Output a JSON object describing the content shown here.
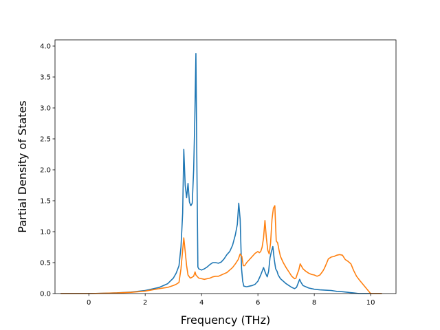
{
  "chart_data": {
    "type": "line",
    "title": "",
    "xlabel": "Frequency (THz)",
    "ylabel": "Partial Density of States",
    "xlim": [
      -1.2,
      10.9
    ],
    "ylim": [
      0,
      4.1
    ],
    "xticks": [
      0,
      2,
      4,
      6,
      8,
      10
    ],
    "yticks": [
      0.0,
      0.5,
      1.0,
      1.5,
      2.0,
      2.5,
      3.0,
      3.5,
      4.0
    ],
    "grid": false,
    "legend": "none",
    "series": [
      {
        "color": "#1f77b4",
        "x": [
          -1.0,
          0.0,
          0.5,
          1.0,
          1.5,
          2.0,
          2.5,
          2.8,
          3.0,
          3.1,
          3.2,
          3.27,
          3.33,
          3.37,
          3.42,
          3.47,
          3.52,
          3.57,
          3.62,
          3.67,
          3.72,
          3.76,
          3.8,
          3.83,
          3.87,
          3.9,
          4.0,
          4.1,
          4.2,
          4.3,
          4.4,
          4.5,
          4.6,
          4.7,
          4.8,
          4.9,
          5.0,
          5.1,
          5.2,
          5.27,
          5.32,
          5.37,
          5.42,
          5.46,
          5.5,
          5.6,
          5.7,
          5.8,
          5.9,
          6.0,
          6.1,
          6.2,
          6.27,
          6.33,
          6.38,
          6.43,
          6.48,
          6.53,
          6.58,
          6.63,
          6.68,
          6.72,
          6.8,
          6.9,
          7.0,
          7.1,
          7.2,
          7.3,
          7.37,
          7.43,
          7.48,
          7.53,
          7.6,
          7.7,
          7.8,
          7.9,
          8.0,
          8.2,
          8.4,
          8.6,
          8.8,
          9.0,
          9.2,
          9.4,
          9.6,
          9.8,
          10.0,
          10.4
        ],
        "y": [
          0.0,
          0.0,
          0.005,
          0.012,
          0.025,
          0.05,
          0.1,
          0.16,
          0.25,
          0.33,
          0.45,
          0.75,
          1.3,
          2.33,
          1.75,
          1.55,
          1.78,
          1.48,
          1.42,
          1.46,
          2.0,
          2.8,
          3.88,
          2.3,
          0.43,
          0.4,
          0.38,
          0.4,
          0.43,
          0.47,
          0.5,
          0.5,
          0.49,
          0.51,
          0.56,
          0.63,
          0.68,
          0.78,
          0.95,
          1.12,
          1.46,
          1.2,
          0.4,
          0.2,
          0.12,
          0.11,
          0.12,
          0.13,
          0.15,
          0.2,
          0.3,
          0.42,
          0.33,
          0.27,
          0.36,
          0.58,
          0.68,
          0.76,
          0.55,
          0.4,
          0.36,
          0.3,
          0.24,
          0.2,
          0.16,
          0.13,
          0.1,
          0.08,
          0.1,
          0.17,
          0.23,
          0.18,
          0.13,
          0.11,
          0.09,
          0.08,
          0.07,
          0.06,
          0.055,
          0.05,
          0.035,
          0.03,
          0.02,
          0.01,
          0.0,
          0.0,
          0.0,
          0.0
        ]
      },
      {
        "color": "#ff7f0e",
        "x": [
          -1.0,
          0.0,
          0.5,
          1.0,
          1.5,
          2.0,
          2.5,
          2.8,
          3.0,
          3.1,
          3.2,
          3.27,
          3.33,
          3.37,
          3.42,
          3.47,
          3.52,
          3.6,
          3.65,
          3.72,
          3.77,
          3.8,
          3.9,
          4.0,
          4.1,
          4.2,
          4.3,
          4.4,
          4.5,
          4.6,
          4.7,
          4.8,
          4.9,
          5.0,
          5.1,
          5.2,
          5.3,
          5.37,
          5.43,
          5.48,
          5.53,
          5.6,
          5.7,
          5.8,
          5.9,
          6.0,
          6.05,
          6.1,
          6.15,
          6.2,
          6.25,
          6.3,
          6.35,
          6.4,
          6.45,
          6.5,
          6.55,
          6.6,
          6.65,
          6.7,
          6.75,
          6.8,
          6.9,
          7.0,
          7.1,
          7.2,
          7.3,
          7.35,
          7.4,
          7.45,
          7.5,
          7.55,
          7.6,
          7.7,
          7.8,
          7.9,
          8.0,
          8.1,
          8.2,
          8.3,
          8.35,
          8.4,
          8.5,
          8.6,
          8.7,
          8.8,
          8.9,
          9.0,
          9.1,
          9.2,
          9.3,
          9.4,
          9.5,
          9.6,
          10.0,
          10.4
        ],
        "y": [
          0.0,
          0.0,
          0.005,
          0.01,
          0.02,
          0.04,
          0.08,
          0.1,
          0.13,
          0.15,
          0.18,
          0.4,
          0.7,
          0.9,
          0.68,
          0.45,
          0.3,
          0.25,
          0.26,
          0.28,
          0.35,
          0.3,
          0.25,
          0.24,
          0.23,
          0.24,
          0.25,
          0.27,
          0.28,
          0.28,
          0.3,
          0.32,
          0.34,
          0.38,
          0.42,
          0.48,
          0.55,
          0.64,
          0.6,
          0.45,
          0.45,
          0.5,
          0.55,
          0.6,
          0.65,
          0.68,
          0.66,
          0.68,
          0.75,
          0.9,
          1.18,
          0.9,
          0.7,
          0.64,
          0.82,
          1.2,
          1.38,
          1.42,
          0.85,
          0.82,
          0.7,
          0.6,
          0.5,
          0.42,
          0.35,
          0.28,
          0.24,
          0.25,
          0.32,
          0.38,
          0.48,
          0.44,
          0.4,
          0.36,
          0.33,
          0.31,
          0.3,
          0.28,
          0.3,
          0.36,
          0.4,
          0.45,
          0.56,
          0.59,
          0.6,
          0.62,
          0.63,
          0.62,
          0.55,
          0.52,
          0.48,
          0.37,
          0.28,
          0.22,
          0.0,
          0.0
        ]
      }
    ]
  }
}
